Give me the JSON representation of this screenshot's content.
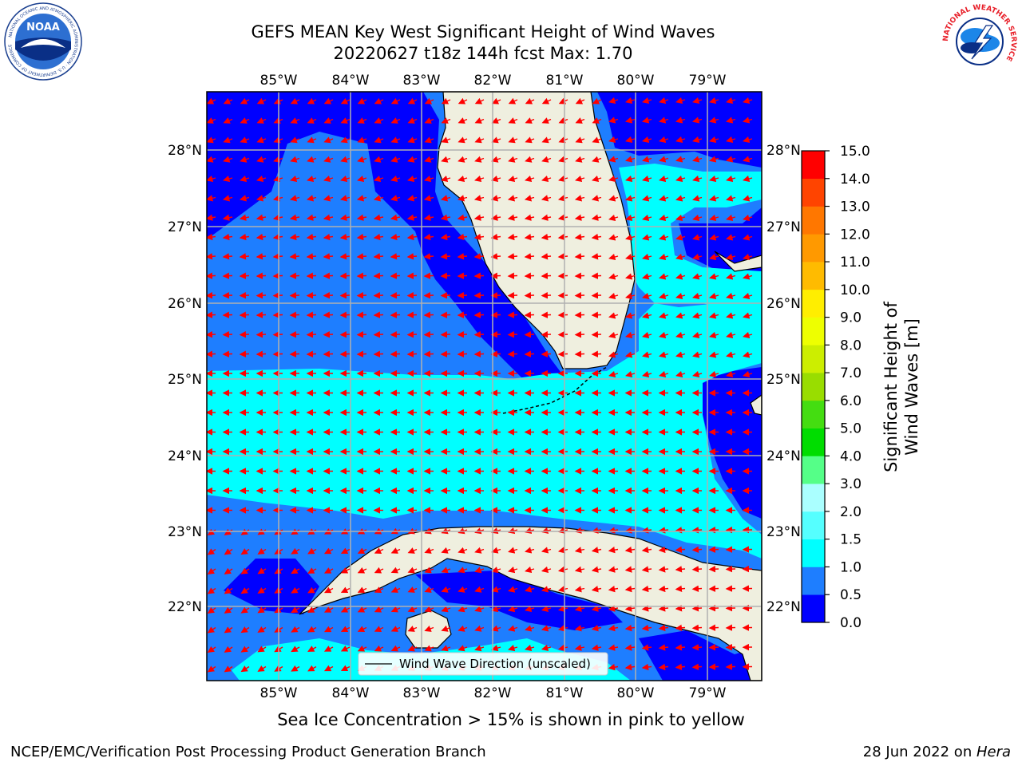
{
  "title_line1": "GEFS MEAN Key West Significant Height of Wind Waves",
  "title_line2": "20220627 t18z 144h fcst   Max: 1.70",
  "lon_labels": [
    "85°W",
    "84°W",
    "83°W",
    "82°W",
    "81°W",
    "80°W",
    "79°W"
  ],
  "lat_labels": [
    "28°N",
    "27°N",
    "26°N",
    "25°N",
    "24°N",
    "23°N",
    "22°N"
  ],
  "legend_label": "Wind Wave Direction (unscaled)",
  "colorbar": {
    "label": "Significant Height of Wind Waves [m]",
    "ticks": [
      "0.0",
      "0.5",
      "1.0",
      "1.5",
      "2.0",
      "3.0",
      "4.0",
      "5.0",
      "6.0",
      "7.0",
      "8.0",
      "9.0",
      "10.0",
      "11.0",
      "12.0",
      "13.0",
      "14.0",
      "15.0"
    ],
    "colors": [
      "#0000ff",
      "#1e7eff",
      "#00ffff",
      "#55ffff",
      "#aaffff",
      "#55ff88",
      "#00dd00",
      "#44dd11",
      "#99dd00",
      "#ccee00",
      "#eeff00",
      "#ffee00",
      "#ffbb00",
      "#ff9900",
      "#ff7700",
      "#ff4400",
      "#ff0000"
    ]
  },
  "bottom_caption": "Sea Ice Concentration > 15% is shown in pink to yellow",
  "footer_left": "NCEP/EMC/Verification Post Processing Product Generation Branch",
  "footer_date": "28 Jun 2022 on ",
  "footer_host": "Hera",
  "logos": {
    "noaa_text": "NOAA",
    "noaa_ring_text": "NATIONAL OCEANIC AND ATMOSPHERIC ADMINISTRATION · U.S. DEPARTMENT OF COMMERCE",
    "nws_ring_text": "NATIONAL WEATHER SERVICE"
  },
  "colors": {
    "land": "#efefdf",
    "arrow": "#ff0000",
    "grid": "#b0b0b0"
  }
}
